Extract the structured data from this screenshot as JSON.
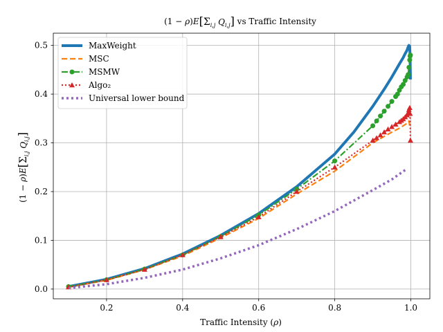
{
  "chart_data": {
    "type": "line",
    "title": "(1 − ρ)E[Σi,j Qi,j]  vs Traffic Intensity",
    "xlabel": "Traffic Intensity (ρ)",
    "ylabel": "(1 − ρ)E[Σi,j Qi,j]",
    "xlim": [
      0.06,
      1.05
    ],
    "ylim": [
      -0.02,
      0.525
    ],
    "xticks": [
      0.2,
      0.4,
      0.6,
      0.8,
      1.0
    ],
    "xtick_labels": [
      "0.2",
      "0.4",
      "0.6",
      "0.8",
      "1.0"
    ],
    "yticks": [
      0.0,
      0.1,
      0.2,
      0.3,
      0.4,
      0.5
    ],
    "ytick_labels": [
      "0.0",
      "0.1",
      "0.2",
      "0.3",
      "0.4",
      "0.5"
    ],
    "grid": true,
    "legend_position": "top-left",
    "series": [
      {
        "name": "MaxWeight",
        "color": "#1f77b4",
        "style": "solid",
        "marker": "none",
        "x": [
          0.1,
          0.2,
          0.3,
          0.4,
          0.5,
          0.6,
          0.7,
          0.8,
          0.85,
          0.9,
          0.93,
          0.95,
          0.97,
          0.98,
          0.985,
          0.99,
          0.993,
          0.995,
          0.997,
          0.998,
          0.999
        ],
        "y": [
          0.005,
          0.02,
          0.042,
          0.072,
          0.11,
          0.155,
          0.21,
          0.277,
          0.322,
          0.375,
          0.41,
          0.435,
          0.462,
          0.475,
          0.483,
          0.49,
          0.497,
          0.5,
          0.498,
          0.48,
          0.43
        ]
      },
      {
        "name": "MSC",
        "color": "#ff7f0e",
        "style": "dashed",
        "marker": "none",
        "x": [
          0.1,
          0.2,
          0.3,
          0.4,
          0.5,
          0.6,
          0.7,
          0.8,
          0.9,
          0.95,
          0.97,
          0.98,
          0.99,
          0.995,
          0.998
        ],
        "y": [
          0.004,
          0.018,
          0.04,
          0.068,
          0.105,
          0.145,
          0.195,
          0.242,
          0.3,
          0.322,
          0.33,
          0.335,
          0.34,
          0.345,
          0.33
        ]
      },
      {
        "name": "MSMW",
        "color": "#2ca02c",
        "style": "dashdot",
        "marker": "circle",
        "x": [
          0.1,
          0.2,
          0.3,
          0.4,
          0.5,
          0.6,
          0.7,
          0.8,
          0.9,
          0.91,
          0.92,
          0.93,
          0.94,
          0.95,
          0.96,
          0.965,
          0.97,
          0.975,
          0.98,
          0.985,
          0.99,
          0.993,
          0.995,
          0.997,
          0.998,
          0.999
        ],
        "y": [
          0.005,
          0.019,
          0.041,
          0.07,
          0.108,
          0.152,
          0.205,
          0.263,
          0.335,
          0.345,
          0.355,
          0.365,
          0.375,
          0.385,
          0.395,
          0.4,
          0.408,
          0.415,
          0.42,
          0.428,
          0.435,
          0.44,
          0.455,
          0.47,
          0.478,
          0.48
        ]
      },
      {
        "name": "Algo₂",
        "color": "#d62728",
        "style": "dotted",
        "marker": "triangle",
        "x": [
          0.1,
          0.2,
          0.3,
          0.4,
          0.5,
          0.6,
          0.7,
          0.8,
          0.9,
          0.91,
          0.92,
          0.93,
          0.94,
          0.95,
          0.96,
          0.97,
          0.975,
          0.98,
          0.985,
          0.99,
          0.993,
          0.995,
          0.997,
          0.998,
          0.999
        ],
        "y": [
          0.004,
          0.019,
          0.04,
          0.07,
          0.107,
          0.148,
          0.2,
          0.25,
          0.305,
          0.31,
          0.316,
          0.322,
          0.328,
          0.333,
          0.338,
          0.343,
          0.346,
          0.349,
          0.353,
          0.357,
          0.362,
          0.368,
          0.372,
          0.36,
          0.305
        ]
      },
      {
        "name": "Universal lower bound",
        "color": "#9467bd",
        "style": "dotted",
        "marker": "none",
        "x": [
          0.1,
          0.2,
          0.3,
          0.4,
          0.5,
          0.6,
          0.7,
          0.8,
          0.9,
          0.95,
          0.99
        ],
        "y": [
          0.002,
          0.01,
          0.023,
          0.04,
          0.063,
          0.09,
          0.123,
          0.16,
          0.203,
          0.225,
          0.247
        ]
      }
    ]
  }
}
